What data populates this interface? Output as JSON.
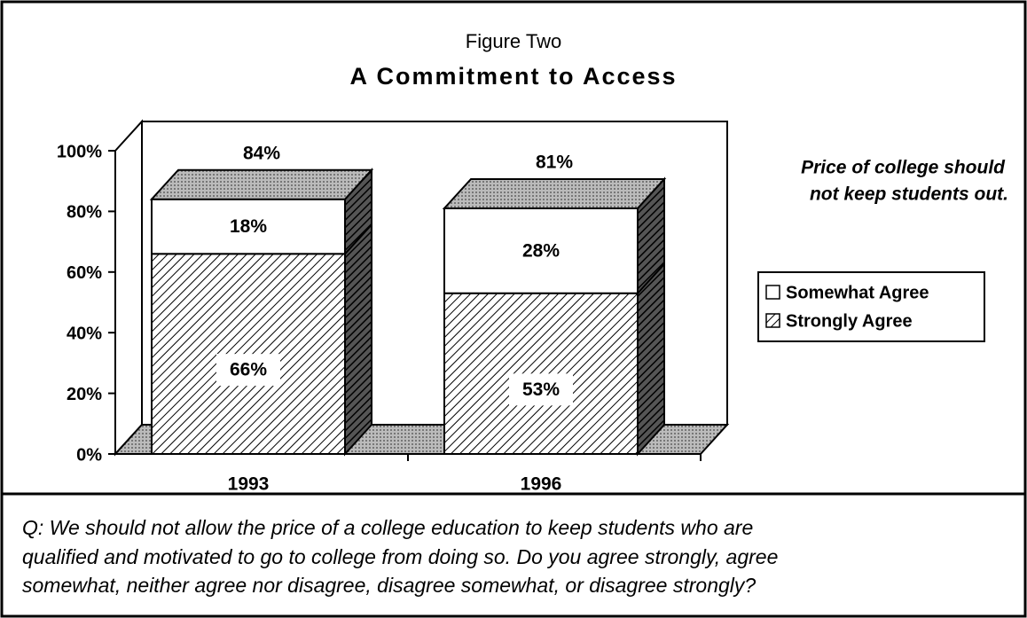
{
  "chart_data": {
    "type": "stacked_bar_3d",
    "subtitle": "Figure Two",
    "title": "A Commitment to Access",
    "annotation": [
      "Price of college should",
      "not keep students out."
    ],
    "question": [
      "Q: We should not allow the price of a college education to keep students who are",
      "qualified and motivated to go to college from doing so. Do you agree strongly, agree",
      "somewhat, neither agree nor disagree, disagree somewhat, or disagree strongly?"
    ],
    "categories": [
      "1993",
      "1996"
    ],
    "series": [
      {
        "name": "Strongly Agree",
        "color": "#000000",
        "pattern": "hatch",
        "values": [
          66,
          53
        ],
        "value_labels": [
          "66%",
          "53%"
        ]
      },
      {
        "name": "Somewhat Agree",
        "color": "#ffffff",
        "values": [
          18,
          28
        ],
        "value_labels": [
          "18%",
          "28%"
        ]
      }
    ],
    "totals": [
      84,
      81
    ],
    "total_labels": [
      "84%",
      "81%"
    ],
    "ylim": [
      0,
      100
    ],
    "yticks": [
      {
        "value": 0,
        "label": "0%"
      },
      {
        "value": 20,
        "label": "20%"
      },
      {
        "value": 40,
        "label": "40%"
      },
      {
        "value": 60,
        "label": "60%"
      },
      {
        "value": 80,
        "label": "80%"
      },
      {
        "value": 100,
        "label": "100%"
      }
    ]
  }
}
